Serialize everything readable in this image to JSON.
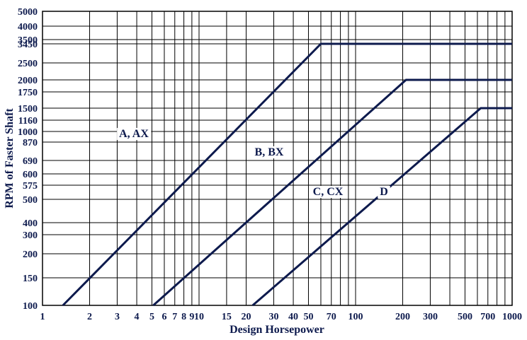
{
  "chart_data": {
    "type": "line",
    "xlabel": "Design Horsepower",
    "ylabel": "RPM of Faster Shaft",
    "x_scale": "log",
    "xlim": [
      1,
      1000
    ],
    "x_ticks": [
      {
        "value": 1,
        "label": "1"
      },
      {
        "value": 2,
        "label": "2"
      },
      {
        "value": 3,
        "label": "3"
      },
      {
        "value": 4,
        "label": "4"
      },
      {
        "value": 5,
        "label": "5"
      },
      {
        "value": 6,
        "label": "6"
      },
      {
        "value": 7,
        "label": "7"
      },
      {
        "value": 8,
        "label": "8"
      },
      {
        "value": 9,
        "label": "9"
      },
      {
        "value": 10,
        "label": "10"
      },
      {
        "value": 15,
        "label": "15"
      },
      {
        "value": 20,
        "label": "20"
      },
      {
        "value": 30,
        "label": "30"
      },
      {
        "value": 40,
        "label": "40"
      },
      {
        "value": 50,
        "label": "50"
      },
      {
        "value": 60,
        "label": ""
      },
      {
        "value": 70,
        "label": "70"
      },
      {
        "value": 80,
        "label": ""
      },
      {
        "value": 90,
        "label": ""
      },
      {
        "value": 100,
        "label": "100"
      },
      {
        "value": 200,
        "label": "200"
      },
      {
        "value": 300,
        "label": "300"
      },
      {
        "value": 400,
        "label": ""
      },
      {
        "value": 500,
        "label": "500"
      },
      {
        "value": 600,
        "label": ""
      },
      {
        "value": 700,
        "label": "700"
      },
      {
        "value": 800,
        "label": ""
      },
      {
        "value": 900,
        "label": ""
      },
      {
        "value": 1000,
        "label": "1000"
      }
    ],
    "y_scale": "categorical-ticks",
    "y_ticks": [
      "100",
      "150",
      "200",
      "300",
      "400",
      "500",
      "575",
      "600",
      "690",
      "870",
      "1000",
      "1160",
      "1500",
      "1750",
      "2000",
      "2500",
      "3450",
      "3500",
      "4000",
      "5000"
    ],
    "series": [
      {
        "name": "A, AX",
        "points": [
          {
            "x": 1.35,
            "y_tick": "100"
          },
          {
            "x": 60,
            "y_tick": "3450"
          },
          {
            "x": 1000,
            "y_tick": "3450"
          }
        ]
      },
      {
        "name": "B, BX",
        "points": [
          {
            "x": 5.1,
            "y_tick": "100"
          },
          {
            "x": 210,
            "y_tick": "2000"
          },
          {
            "x": 1000,
            "y_tick": "2000"
          }
        ]
      },
      {
        "name": "C, CX",
        "points": [
          {
            "x": 22,
            "y_tick": "100"
          },
          {
            "x": 630,
            "y_tick": "1500"
          },
          {
            "x": 1000,
            "y_tick": "1500"
          }
        ]
      },
      {
        "name": "D",
        "points": []
      }
    ],
    "grid": true,
    "legend": "none"
  }
}
